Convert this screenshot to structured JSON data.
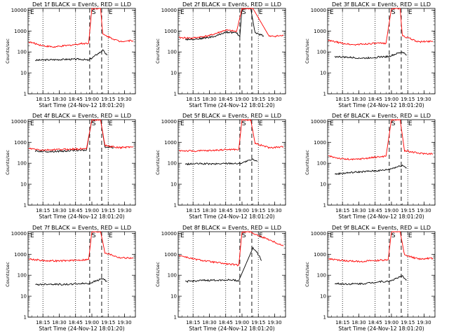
{
  "figure": {
    "y_axis_label": "Counts/sec",
    "x_axis_label": "Start Time (24-Nov-12 18:01:20)",
    "x_tick_labels": [
      "18:15",
      "18:30",
      "18:45",
      "19:00",
      "19:15",
      "19:30"
    ],
    "y_tick_labels": [
      "1",
      "10",
      "100",
      "1000",
      "10000"
    ],
    "series_colors": {
      "events": "#000000",
      "lld": "#ff0000"
    },
    "markers": {
      "start": "E",
      "middle": "S",
      "end": "E"
    }
  },
  "chart_data": [
    {
      "type": "line",
      "title": "Det 1f BLACK = Events, RED = LLD",
      "ylog": true,
      "ylim": [
        1,
        12000
      ],
      "xlim": [
        "18:01:20",
        "19:40"
      ],
      "gaps": [
        [
          "18:58",
          "19:09"
        ]
      ],
      "series": [
        {
          "name": "Events",
          "color": "#000000",
          "x": [
            "18:08",
            "18:20",
            "18:35",
            "18:50",
            "18:57",
            "19:10",
            "19:14"
          ],
          "values": [
            40,
            42,
            44,
            45,
            40,
            120,
            70
          ]
        },
        {
          "name": "LLD",
          "color": "#ff0000",
          "x": [
            "18:02",
            "18:15",
            "18:25",
            "18:40",
            "18:50",
            "18:57",
            "19:00",
            "19:08",
            "19:10",
            "19:25",
            "19:38"
          ],
          "values": [
            300,
            200,
            170,
            210,
            250,
            260,
            12000,
            12000,
            700,
            320,
            350
          ]
        }
      ]
    },
    {
      "type": "line",
      "title": "Det 2f BLACK = Events, RED = LLD",
      "ylog": true,
      "ylim": [
        1,
        12000
      ],
      "xlim": [
        "18:01:20",
        "19:40"
      ],
      "gaps": [
        [
          "18:58",
          "19:09"
        ]
      ],
      "series": [
        {
          "name": "Events",
          "color": "#000000",
          "x": [
            "18:08",
            "18:20",
            "18:35",
            "18:45",
            "18:55",
            "18:58",
            "19:00",
            "19:08",
            "19:12",
            "19:20"
          ],
          "values": [
            400,
            420,
            550,
            900,
            800,
            550,
            12000,
            12000,
            800,
            600
          ]
        },
        {
          "name": "LLD",
          "color": "#ff0000",
          "x": [
            "18:02",
            "18:15",
            "18:30",
            "18:45",
            "18:55",
            "19:00",
            "19:10",
            "19:25",
            "19:38"
          ],
          "values": [
            480,
            460,
            600,
            1100,
            950,
            12000,
            12000,
            550,
            600
          ]
        }
      ]
    },
    {
      "type": "line",
      "title": "Det 3f BLACK = Events, RED = LLD",
      "ylog": true,
      "ylim": [
        1,
        12000
      ],
      "xlim": [
        "18:01:20",
        "19:40"
      ],
      "gaps": [
        [
          "18:58",
          "19:09"
        ]
      ],
      "series": [
        {
          "name": "Events",
          "color": "#000000",
          "x": [
            "18:08",
            "18:20",
            "18:35",
            "18:50",
            "18:57",
            "19:10",
            "19:14"
          ],
          "values": [
            60,
            55,
            50,
            58,
            60,
            100,
            70
          ]
        },
        {
          "name": "LLD",
          "color": "#ff0000",
          "x": [
            "18:02",
            "18:15",
            "18:25",
            "18:40",
            "18:55",
            "19:00",
            "19:08",
            "19:10",
            "19:25",
            "19:38"
          ],
          "values": [
            350,
            260,
            220,
            250,
            260,
            12000,
            12000,
            600,
            300,
            330
          ]
        }
      ]
    },
    {
      "type": "line",
      "title": "Det 4f BLACK = Events, RED = LLD",
      "ylog": true,
      "ylim": [
        1,
        12000
      ],
      "xlim": [
        "18:01:20",
        "19:40"
      ],
      "gaps": [
        [
          "18:58",
          "19:09"
        ]
      ],
      "series": [
        {
          "name": "Events",
          "color": "#000000",
          "x": [
            "18:08",
            "18:20",
            "18:35",
            "18:45",
            "18:55",
            "19:00",
            "19:08",
            "19:12",
            "19:20"
          ],
          "values": [
            380,
            360,
            380,
            420,
            420,
            12000,
            12000,
            600,
            560
          ]
        },
        {
          "name": "LLD",
          "color": "#ff0000",
          "x": [
            "18:02",
            "18:15",
            "18:30",
            "18:45",
            "18:55",
            "19:00",
            "19:08",
            "19:12",
            "19:25",
            "19:38"
          ],
          "values": [
            500,
            420,
            450,
            480,
            480,
            12000,
            12000,
            700,
            550,
            620
          ]
        }
      ]
    },
    {
      "type": "line",
      "title": "Det 5f BLACK = Events, RED = LLD",
      "ylog": true,
      "ylim": [
        1,
        12000
      ],
      "xlim": [
        "18:01:20",
        "19:40"
      ],
      "gaps": [
        [
          "18:58",
          "19:09"
        ]
      ],
      "series": [
        {
          "name": "Events",
          "color": "#000000",
          "x": [
            "18:08",
            "18:20",
            "18:35",
            "18:50",
            "18:57",
            "19:10",
            "19:14"
          ],
          "values": [
            90,
            95,
            92,
            100,
            95,
            150,
            120
          ]
        },
        {
          "name": "LLD",
          "color": "#ff0000",
          "x": [
            "18:02",
            "18:15",
            "18:30",
            "18:45",
            "18:57",
            "19:00",
            "19:08",
            "19:12",
            "19:25",
            "19:38"
          ],
          "values": [
            400,
            380,
            400,
            450,
            450,
            12000,
            12000,
            900,
            550,
            600
          ]
        }
      ]
    },
    {
      "type": "line",
      "title": "Det 6f BLACK = Events, RED = LLD",
      "ylog": true,
      "ylim": [
        1,
        12000
      ],
      "xlim": [
        "18:01:20",
        "19:40"
      ],
      "gaps": [
        [
          "18:58",
          "19:09"
        ]
      ],
      "series": [
        {
          "name": "Events",
          "color": "#000000",
          "x": [
            "18:08",
            "18:20",
            "18:35",
            "18:50",
            "18:57",
            "19:10",
            "19:14"
          ],
          "values": [
            30,
            35,
            40,
            45,
            50,
            80,
            60
          ]
        },
        {
          "name": "LLD",
          "color": "#ff0000",
          "x": [
            "18:02",
            "18:15",
            "18:25",
            "18:40",
            "18:55",
            "19:00",
            "19:08",
            "19:12",
            "19:25",
            "19:38"
          ],
          "values": [
            220,
            160,
            150,
            180,
            220,
            12000,
            12000,
            400,
            300,
            280
          ]
        }
      ]
    },
    {
      "type": "line",
      "title": "Det 7f BLACK = Events, RED = LLD",
      "ylog": true,
      "ylim": [
        1,
        12000
      ],
      "xlim": [
        "18:01:20",
        "19:40"
      ],
      "gaps": [
        [
          "18:58",
          "19:09"
        ]
      ],
      "series": [
        {
          "name": "Events",
          "color": "#000000",
          "x": [
            "18:08",
            "18:20",
            "18:35",
            "18:50",
            "18:57",
            "19:10",
            "19:14"
          ],
          "values": [
            35,
            38,
            36,
            40,
            40,
            70,
            50
          ]
        },
        {
          "name": "LLD",
          "color": "#ff0000",
          "x": [
            "18:02",
            "18:15",
            "18:30",
            "18:45",
            "18:57",
            "19:00",
            "19:08",
            "19:12",
            "19:25",
            "19:38"
          ],
          "values": [
            600,
            500,
            480,
            520,
            560,
            12000,
            12000,
            1200,
            700,
            650
          ]
        }
      ]
    },
    {
      "type": "line",
      "title": "Det 8f BLACK = Events, RED = LLD",
      "ylog": true,
      "ylim": [
        1,
        12000
      ],
      "xlim": [
        "18:01:20",
        "19:40"
      ],
      "gaps": [
        [
          "18:58",
          "19:09"
        ]
      ],
      "series": [
        {
          "name": "Events",
          "color": "#000000",
          "x": [
            "18:08",
            "18:20",
            "18:35",
            "18:50",
            "18:57",
            "19:10",
            "19:14",
            "19:18"
          ],
          "values": [
            50,
            55,
            58,
            60,
            55,
            2000,
            1200,
            500
          ]
        },
        {
          "name": "LLD",
          "color": "#ff0000",
          "x": [
            "18:02",
            "18:15",
            "18:30",
            "18:45",
            "18:57",
            "19:00",
            "19:08",
            "19:12",
            "19:25",
            "19:38"
          ],
          "values": [
            900,
            600,
            450,
            350,
            300,
            12000,
            12000,
            9000,
            5000,
            2500
          ]
        }
      ]
    },
    {
      "type": "line",
      "title": "Det 9f BLACK = Events, RED = LLD",
      "ylog": true,
      "ylim": [
        1,
        12000
      ],
      "xlim": [
        "18:01:20",
        "19:40"
      ],
      "gaps": [
        [
          "18:58",
          "19:09"
        ]
      ],
      "series": [
        {
          "name": "Events",
          "color": "#000000",
          "x": [
            "18:08",
            "18:20",
            "18:35",
            "18:50",
            "18:57",
            "19:10",
            "19:14"
          ],
          "values": [
            40,
            38,
            40,
            50,
            50,
            90,
            60
          ]
        },
        {
          "name": "LLD",
          "color": "#ff0000",
          "x": [
            "18:02",
            "18:15",
            "18:30",
            "18:45",
            "18:57",
            "19:00",
            "19:08",
            "19:12",
            "19:25",
            "19:38"
          ],
          "values": [
            600,
            500,
            450,
            500,
            550,
            12000,
            12000,
            900,
            600,
            650
          ]
        }
      ]
    }
  ]
}
